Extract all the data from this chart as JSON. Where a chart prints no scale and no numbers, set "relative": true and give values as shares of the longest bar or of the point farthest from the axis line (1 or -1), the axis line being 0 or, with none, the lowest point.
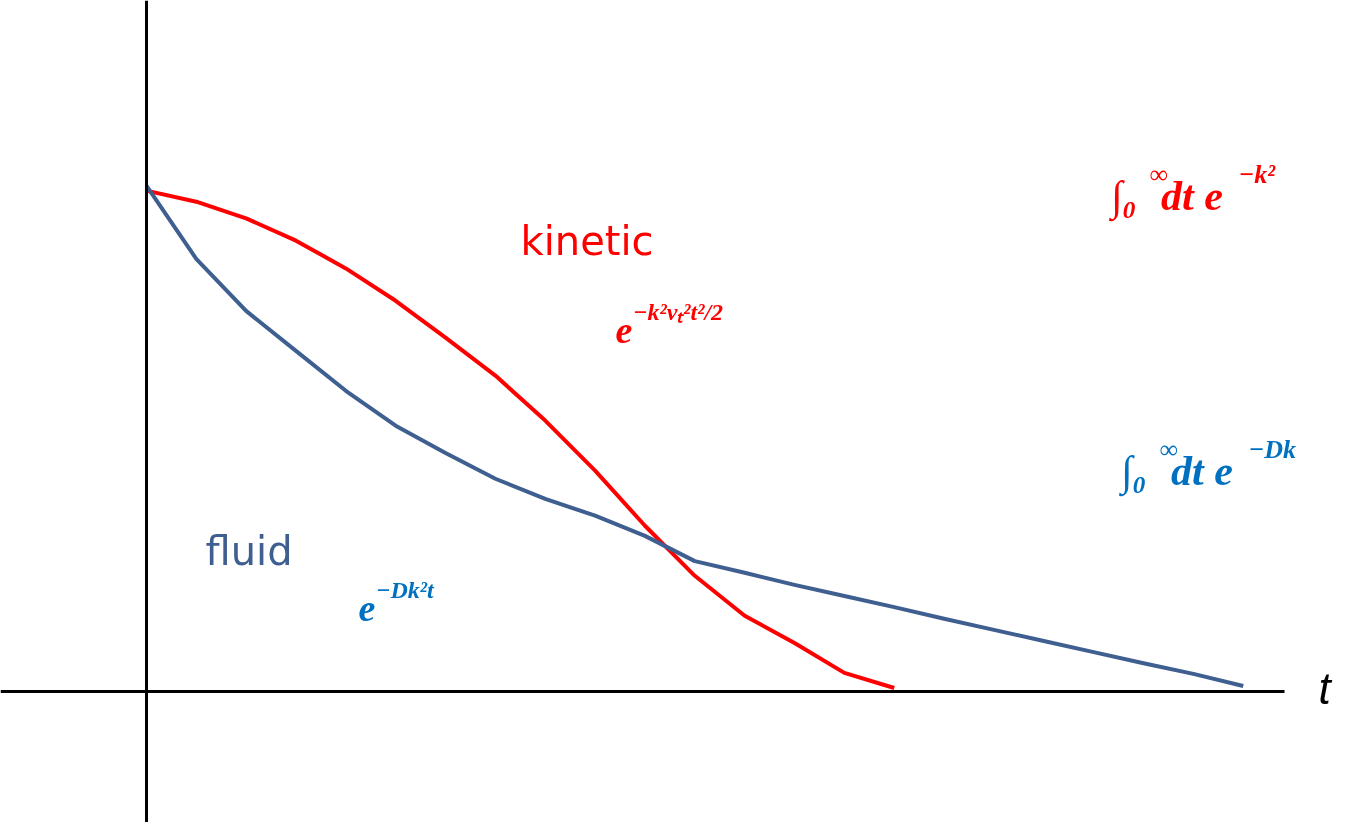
{
  "chart_data": {
    "type": "line",
    "relative": true,
    "xlabel": "t",
    "grid": false,
    "categories": [
      null,
      null,
      null,
      null,
      null,
      null,
      null,
      null,
      null,
      null,
      null,
      null,
      null,
      null,
      null,
      null,
      null,
      null,
      null,
      null,
      null,
      null,
      null
    ],
    "series": [
      {
        "name": "kinetic",
        "color": "#ff0000",
        "values": [
          0.99,
          0.968,
          0.935,
          0.891,
          0.836,
          0.772,
          0.699,
          0.624,
          0.535,
          0.436,
          0.327,
          0.228,
          0.149,
          0.095,
          0.036,
          0.006,
          null,
          null,
          null,
          null,
          null,
          null,
          null
        ]
      },
      {
        "name": "fluid",
        "color": "#3e5f8f",
        "values": [
          1.0,
          0.855,
          0.752,
          0.673,
          0.594,
          0.525,
          0.471,
          0.42,
          0.38,
          0.347,
          0.307,
          0.257,
          0.234,
          0.21,
          0.188,
          0.166,
          0.143,
          0.121,
          0.099,
          0.077,
          0.055,
          0.034,
          0.01
        ]
      }
    ],
    "annotations": [
      "e$^{−k²vₜ²t²/2}$",
      "e$^{−Dk²t}$",
      "∫₀$^{∞}$dt e$^{−k²}$",
      "∫₀$^{∞}$dt e$^{−Dk}$"
    ]
  }
}
